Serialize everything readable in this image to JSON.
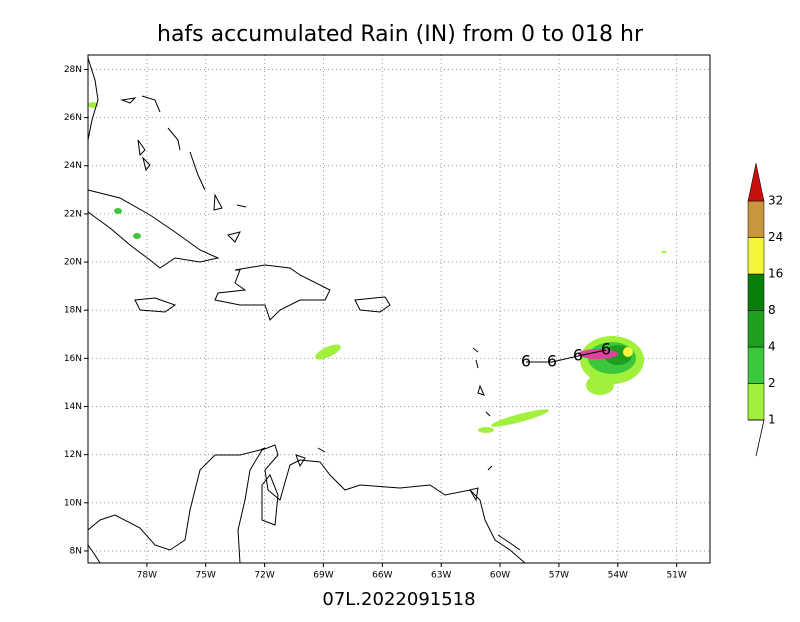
{
  "chart_data": {
    "type": "map",
    "title": "hafs accumulated Rain (IN) from 0 to 018 hr",
    "footer": "07L.2022091518",
    "xlim": [
      -81,
      -49.3
    ],
    "ylim": [
      7.5,
      28.6
    ],
    "xticks": [
      {
        "value": -78,
        "label": "78W"
      },
      {
        "value": -75,
        "label": "75W"
      },
      {
        "value": -72,
        "label": "72W"
      },
      {
        "value": -69,
        "label": "69W"
      },
      {
        "value": -66,
        "label": "66W"
      },
      {
        "value": -63,
        "label": "63W"
      },
      {
        "value": -60,
        "label": "60W"
      },
      {
        "value": -57,
        "label": "57W"
      },
      {
        "value": -54,
        "label": "54W"
      },
      {
        "value": -51,
        "label": "51W"
      }
    ],
    "yticks": [
      {
        "value": 8,
        "label": "8N"
      },
      {
        "value": 10,
        "label": "10N"
      },
      {
        "value": 12,
        "label": "12N"
      },
      {
        "value": 14,
        "label": "14N"
      },
      {
        "value": 16,
        "label": "16N"
      },
      {
        "value": 18,
        "label": "18N"
      },
      {
        "value": 20,
        "label": "20N"
      },
      {
        "value": 22,
        "label": "22N"
      },
      {
        "value": 24,
        "label": "24N"
      },
      {
        "value": 26,
        "label": "26N"
      },
      {
        "value": 28,
        "label": "28N"
      }
    ],
    "grid": true,
    "colorbar": {
      "levels": [
        1,
        2,
        4,
        8,
        16,
        24,
        32
      ],
      "colors": [
        "#a0f03c",
        "#3cc83c",
        "#1ea01e",
        "#0a7d0a",
        "#f5f53c",
        "#c8963c",
        "#f5a03c",
        "#c80f0f"
      ]
    }
  }
}
